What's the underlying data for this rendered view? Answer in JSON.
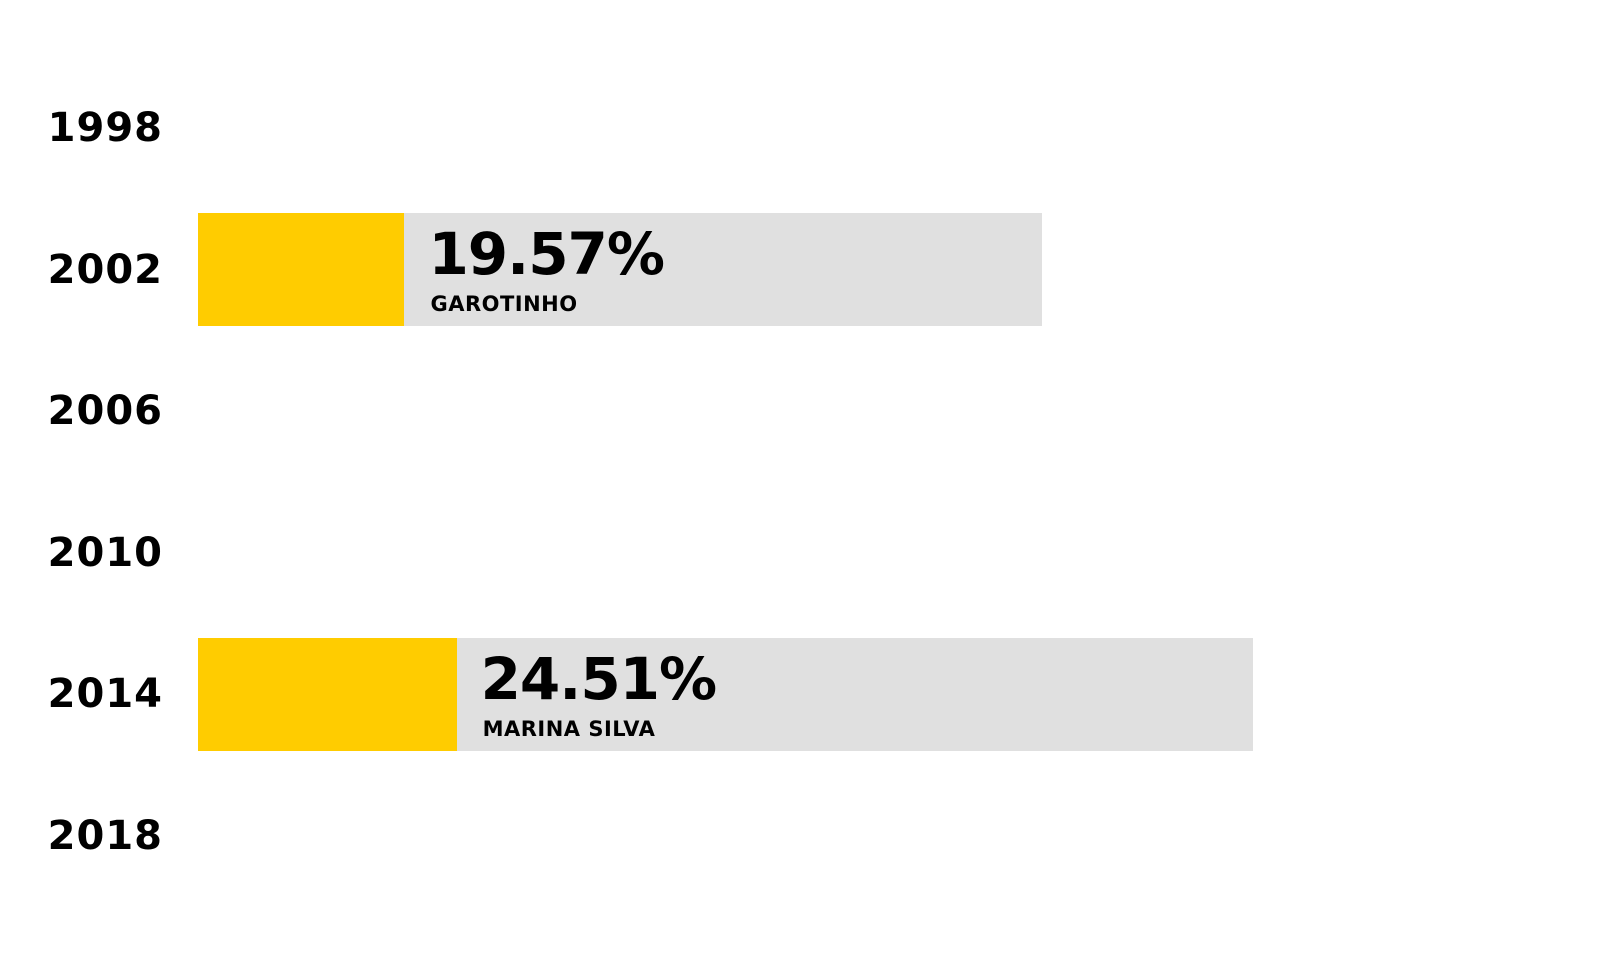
{
  "chart_data": {
    "type": "bar",
    "orientation": "horizontal",
    "categories": [
      "1998",
      "2002",
      "2006",
      "2010",
      "2014",
      "2018"
    ],
    "values": [
      null,
      19.57,
      null,
      null,
      24.51,
      null
    ],
    "value_labels": [
      "",
      "19.57%",
      "",
      "",
      "24.51%",
      ""
    ],
    "candidates": [
      "",
      "GAROTINHO",
      "",
      "",
      "MARINA SILVA",
      ""
    ],
    "track_max": [
      null,
      80,
      null,
      null,
      100,
      null
    ],
    "title": "",
    "xlabel": "",
    "ylabel": "",
    "grid": false,
    "legend": "none",
    "colors": {
      "fill": "#ffcc00",
      "track": "#e0e0e0",
      "text": "#000000",
      "background": "#ffffff"
    }
  }
}
